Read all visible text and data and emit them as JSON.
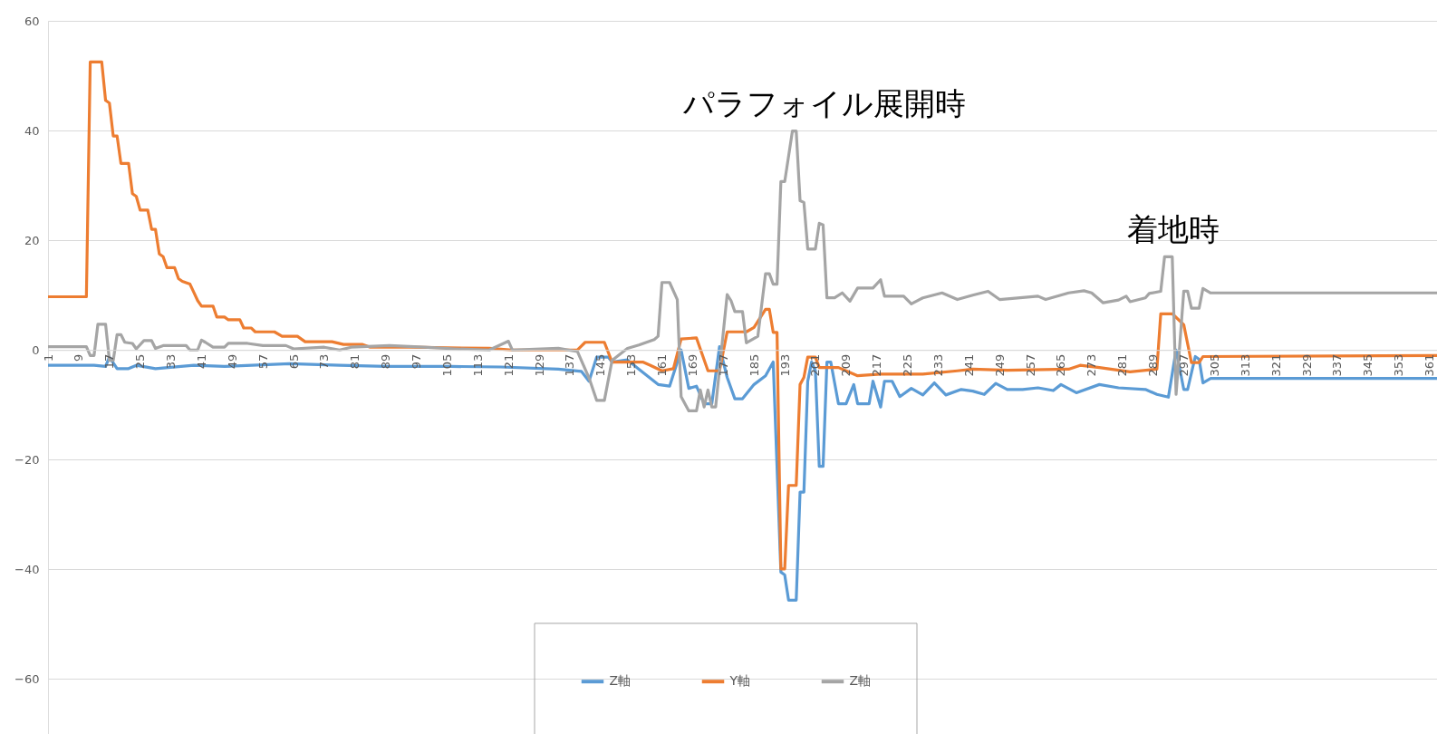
{
  "chart_data": {
    "type": "line",
    "xlim": [
      1,
      363
    ],
    "xticks": [
      1,
      9,
      17,
      25,
      33,
      41,
      49,
      57,
      65,
      73,
      81,
      89,
      97,
      105,
      113,
      121,
      129,
      137,
      145,
      153,
      161,
      169,
      177,
      185,
      193,
      201,
      209,
      217,
      225,
      233,
      241,
      249,
      257,
      265,
      273,
      281,
      289,
      297,
      305,
      313,
      321,
      329,
      337,
      345,
      353,
      361
    ],
    "ylim": [
      -70,
      60
    ],
    "yticks": [
      -60,
      -40,
      -20,
      0,
      20,
      40,
      60
    ],
    "grid": "y",
    "legend": "bottom",
    "line_style": "solid",
    "marker": "none",
    "annotations": [
      "パラフォイル展開時",
      "着地時"
    ],
    "series": [
      {
        "name": "Z軸",
        "color": "#5b9bd5",
        "x": [
          1,
          13,
          16,
          17,
          19,
          22,
          24,
          29,
          39,
          47,
          64,
          77,
          89,
          106,
          119,
          134,
          140,
          142,
          144,
          147,
          148,
          152,
          155,
          160,
          163,
          166,
          168,
          170,
          172,
          174,
          176,
          178,
          180,
          182,
          185,
          188,
          190,
          192,
          193,
          194,
          196,
          197,
          198,
          199,
          200,
          201,
          202,
          203,
          204,
          205,
          207,
          209,
          211,
          212,
          215,
          216,
          218,
          219,
          221,
          223,
          226,
          229,
          232,
          235,
          239,
          242,
          245,
          248,
          251,
          255,
          259,
          263,
          265,
          269,
          275,
          280,
          287,
          290,
          293,
          295,
          297,
          298,
          300,
          301,
          302,
          304,
          363
        ],
        "values": [
          -2.8,
          -2.8,
          -3,
          -1.3,
          -3.4,
          -3.4,
          -2.8,
          -3.4,
          -2.8,
          -3,
          -2.5,
          -2.8,
          -3,
          -3,
          -3.1,
          -3.5,
          -3.9,
          -5.7,
          -1.3,
          -1.3,
          -2.2,
          -1.8,
          -3.5,
          -6.3,
          -6.6,
          0,
          -7,
          -6.6,
          -9.8,
          -9.8,
          0.6,
          -5,
          -8.9,
          -8.9,
          -6.3,
          -4.7,
          -2.2,
          -40.5,
          -41,
          -45.6,
          -45.6,
          -25.9,
          -25.9,
          -5.7,
          -2.2,
          -3.8,
          -21.2,
          -21.2,
          -2.2,
          -2.2,
          -9.8,
          -9.8,
          -6.3,
          -9.8,
          -9.8,
          -5.7,
          -10.4,
          -5.7,
          -5.7,
          -8.5,
          -7,
          -8.2,
          -6,
          -8.2,
          -7.2,
          -7.5,
          -8.1,
          -6.1,
          -7.2,
          -7.2,
          -6.9,
          -7.4,
          -6.3,
          -7.8,
          -6.3,
          -6.9,
          -7.2,
          -8.1,
          -8.6,
          0,
          -7.2,
          -7.2,
          -1.2,
          -1.7,
          -6,
          -5.2,
          -5.2
        ]
      },
      {
        "name": "Y軸",
        "color": "#ed7d31",
        "x": [
          1,
          11,
          12,
          15,
          16,
          17,
          18,
          19,
          20,
          22,
          23,
          24,
          25,
          27,
          28,
          29,
          30,
          31,
          32,
          34,
          35,
          36,
          38,
          39,
          40,
          41,
          44,
          45,
          47,
          48,
          51,
          52,
          54,
          55,
          60,
          62,
          66,
          68,
          75,
          78,
          83,
          85,
          95,
          116,
          122,
          139,
          141,
          146,
          148,
          156,
          158,
          161,
          164,
          166,
          170,
          173,
          176,
          178,
          183,
          185,
          188,
          189,
          190,
          191,
          192,
          193,
          194,
          196,
          197,
          198,
          199,
          201,
          202,
          207,
          209,
          212,
          218,
          229,
          238,
          242,
          251,
          267,
          270,
          275,
          283,
          290,
          291,
          294,
          297,
          299,
          301,
          302,
          363
        ],
        "values": [
          9.7,
          9.7,
          52.5,
          52.5,
          45.5,
          45,
          39,
          39,
          34,
          34,
          28.5,
          28,
          25.5,
          25.5,
          22,
          22,
          17.5,
          17,
          15,
          15,
          13,
          12.5,
          12,
          10.5,
          9,
          8,
          8,
          6,
          6,
          5.5,
          5.5,
          4,
          4,
          3.3,
          3.3,
          2.5,
          2.5,
          1.5,
          1.5,
          1,
          1,
          0.5,
          0.5,
          0.3,
          0,
          0,
          1.4,
          1.4,
          -2.2,
          -2.2,
          -2.8,
          -3.8,
          -3.4,
          2,
          2.2,
          -3.8,
          -3.8,
          3.3,
          3.3,
          4.1,
          7.4,
          7.4,
          3.2,
          3.2,
          -39.9,
          -39.9,
          -24.7,
          -24.7,
          -6.3,
          -5,
          -1.3,
          -1.3,
          -3.2,
          -3.2,
          -3.8,
          -4.7,
          -4.4,
          -4.4,
          -3.8,
          -3.5,
          -3.7,
          -3.5,
          -2.8,
          -3.2,
          -4,
          -3.5,
          6.6,
          6.6,
          4.6,
          -2.3,
          -2.3,
          -1.2,
          -1
        ]
      },
      {
        "name": "Z軸",
        "color": "#a5a5a5",
        "x": [
          1,
          11,
          12,
          13,
          14,
          16,
          17,
          18,
          19,
          20,
          21,
          23,
          24,
          26,
          28,
          29,
          31,
          37,
          38,
          40,
          41,
          42,
          44,
          47,
          48,
          53,
          57,
          63,
          65,
          73,
          77,
          80,
          90,
          99,
          107,
          116,
          121,
          122,
          134,
          139,
          142,
          144,
          146,
          148,
          152,
          155,
          159,
          160,
          161,
          163,
          165,
          166,
          168,
          170,
          171,
          172,
          173,
          174,
          175,
          178,
          179,
          180,
          182,
          183,
          186,
          188,
          189,
          190,
          191,
          192,
          193,
          195,
          196,
          197,
          198,
          199,
          201,
          202,
          203,
          204,
          206,
          208,
          210,
          212,
          216,
          218,
          219,
          224,
          226,
          229,
          234,
          238,
          242,
          246,
          249,
          259,
          261,
          267,
          271,
          273,
          276,
          280,
          282,
          283,
          287,
          288,
          291,
          292,
          294,
          295,
          297,
          298,
          299,
          301,
          302,
          304,
          363
        ],
        "values": [
          0.6,
          0.6,
          -1,
          -1,
          4.7,
          4.7,
          -1.9,
          -1.9,
          2.8,
          2.8,
          1.4,
          1.2,
          0.2,
          1.7,
          1.7,
          0.3,
          0.8,
          0.8,
          0,
          0,
          1.8,
          1.4,
          0.5,
          0.5,
          1.2,
          1.2,
          0.8,
          0.8,
          0.2,
          0.5,
          0,
          0.5,
          0.8,
          0.5,
          0.2,
          0,
          1.6,
          0,
          0.3,
          -0.3,
          -5.1,
          -9.2,
          -9.2,
          -1.9,
          0.3,
          0.9,
          1.9,
          2.5,
          12.3,
          12.3,
          9.2,
          -8.5,
          -11.1,
          -11.1,
          -7.3,
          -10.4,
          -7.3,
          -10.4,
          -10.4,
          10.1,
          9,
          7,
          7,
          1.3,
          2.5,
          13.9,
          13.9,
          12,
          12,
          30.7,
          30.7,
          39.9,
          39.9,
          27.2,
          26.9,
          18.4,
          18.4,
          23.1,
          22.8,
          9.5,
          9.5,
          10.4,
          8.9,
          11.3,
          11.3,
          12.8,
          9.8,
          9.8,
          8.4,
          9.5,
          10.4,
          9.2,
          10,
          10.7,
          9.2,
          9.8,
          9.2,
          10.4,
          10.8,
          10.4,
          8.6,
          9.1,
          9.8,
          8.8,
          9.5,
          10.3,
          10.7,
          17,
          17,
          -8.1,
          10.7,
          10.7,
          7.6,
          7.6,
          11.2,
          10.4,
          10.4
        ]
      }
    ]
  }
}
